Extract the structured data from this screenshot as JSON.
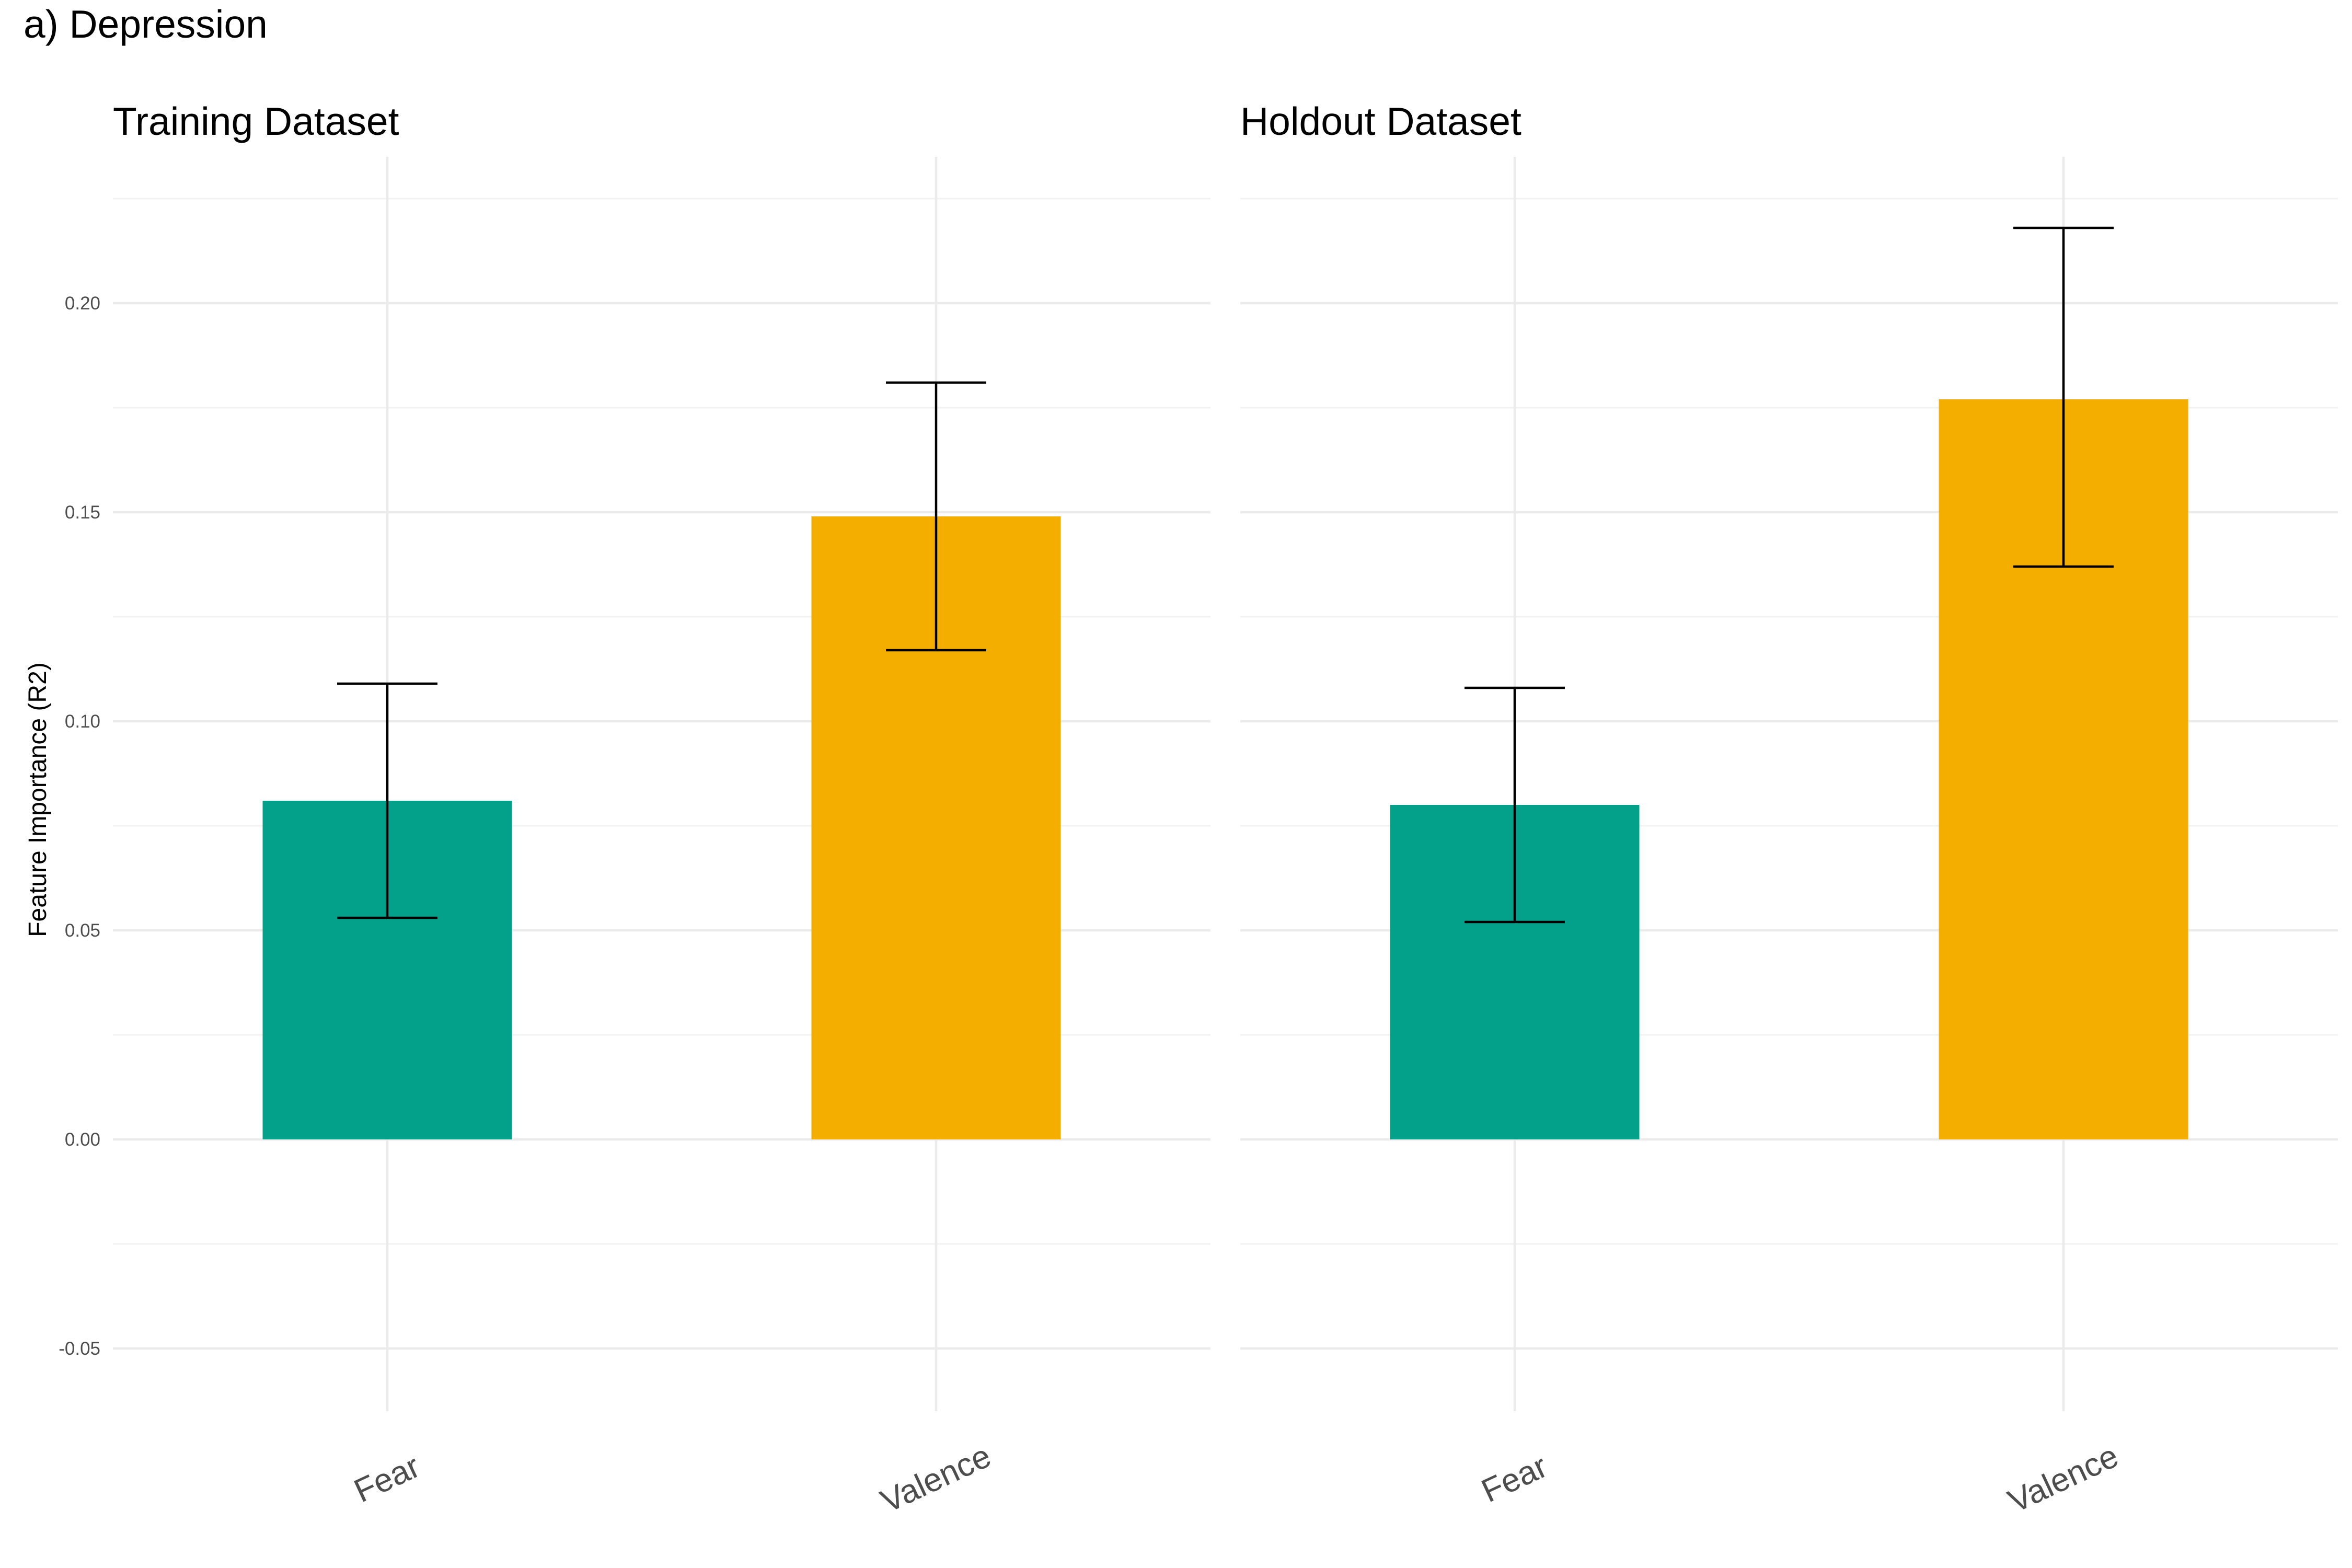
{
  "figure_title": "a) Depression",
  "chart_data": [
    {
      "type": "bar",
      "title": "Training Dataset",
      "xlabel": "",
      "ylabel": "Feature Importance (R2)",
      "categories": [
        "Fear",
        "Valence"
      ],
      "values": [
        0.081,
        0.149
      ],
      "error_low": [
        0.053,
        0.117
      ],
      "error_high": [
        0.109,
        0.181
      ],
      "colors": [
        "#03A18A",
        "#F3AE00"
      ],
      "ylim": [
        -0.065,
        0.235
      ],
      "yticks": [
        -0.05,
        0.0,
        0.05,
        0.1,
        0.15,
        0.2
      ],
      "ytick_labels": [
        "-0.05",
        "0.00",
        "0.05",
        "0.10",
        "0.15",
        "0.20"
      ],
      "grid": true,
      "legend": "none"
    },
    {
      "type": "bar",
      "title": "Holdout Dataset",
      "xlabel": "",
      "ylabel": "",
      "categories": [
        "Fear",
        "Valence"
      ],
      "values": [
        0.08,
        0.177
      ],
      "error_low": [
        0.052,
        0.137
      ],
      "error_high": [
        0.108,
        0.218
      ],
      "colors": [
        "#03A18A",
        "#F3AE00"
      ],
      "ylim": [
        -0.065,
        0.235
      ],
      "yticks": [
        -0.05,
        0.0,
        0.05,
        0.1,
        0.15,
        0.2
      ],
      "grid": true,
      "legend": "none"
    }
  ]
}
